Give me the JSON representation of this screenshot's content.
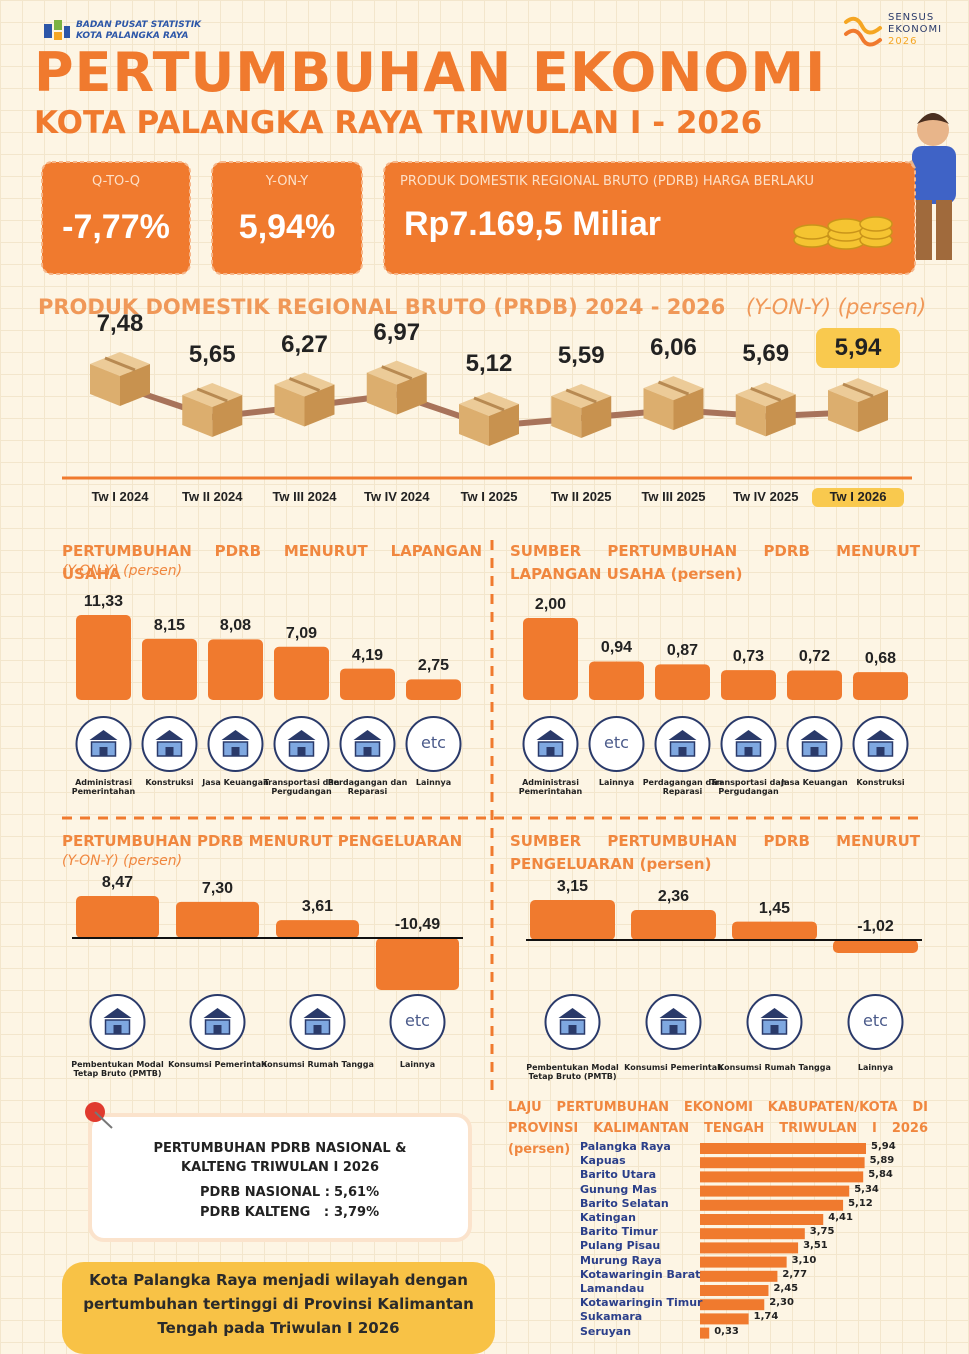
{
  "header": {
    "org": "BADAN PUSAT STATISTIK",
    "region": "KOTA PALANGKA RAYA",
    "title": "PERTUMBUHAN EKONOMI",
    "subtitle": "KOTA PALANGKA RAYA TRIWULAN I - 2026",
    "census": [
      "SENSUS",
      "EKONOMI",
      "2026"
    ]
  },
  "kpis": [
    {
      "label": "Q-TO-Q",
      "value": "-7,77%"
    },
    {
      "label": "Y-ON-Y",
      "value": "5,94%"
    },
    {
      "label": "PRODUK DOMESTIK REGIONAL BRUTO (PDRB) HARGA BERLAKU",
      "value": "Rp7.169,5 Miliar"
    }
  ],
  "chart_data": [
    {
      "type": "line",
      "title": "PRODUK DOMESTIK REGIONAL BRUTO (PRDB) 2024 - 2026",
      "subtitle": "(Y-ON-Y) (persen)",
      "categories": [
        "Tw I 2024",
        "Tw II 2024",
        "Tw III 2024",
        "Tw IV 2024",
        "Tw I 2025",
        "Tw II 2025",
        "Tw III 2025",
        "Tw IV 2025",
        "Tw I 2026"
      ],
      "values": [
        7.48,
        5.65,
        6.27,
        6.97,
        5.12,
        5.59,
        6.06,
        5.69,
        5.94
      ],
      "value_labels": [
        "7,48",
        "5,65",
        "6,27",
        "6,97",
        "5,12",
        "5,59",
        "6,06",
        "5,69",
        "5,94"
      ],
      "color": "#a8735a",
      "highlight_color": "#f9c94e"
    },
    {
      "type": "bar",
      "title": "PERTUMBUHAN PDRB MENURUT LAPANGAN USAHA",
      "subtitle": "(Y-ON-Y) (persen)",
      "categories": [
        "Administrasi Pemerintahan",
        "Konstruksi",
        "Jasa Keuangan",
        "Transportasi dan Pergudangan",
        "Perdagangan dan Reparasi",
        "Lainnya"
      ],
      "values": [
        11.33,
        8.15,
        8.08,
        7.09,
        4.19,
        2.75
      ],
      "value_labels": [
        "11,33",
        "8,15",
        "8,08",
        "7,09",
        "4,19",
        "2,75"
      ],
      "icon_texts": [
        null,
        null,
        null,
        null,
        null,
        "etc"
      ],
      "color": "#f07a2e"
    },
    {
      "type": "bar",
      "title": "SUMBER PERTUMBUHAN PDRB MENURUT LAPANGAN USAHA (persen)",
      "categories": [
        "Administrasi Pemerintahan",
        "Lainnya",
        "Perdagangan dan Reparasi",
        "Transportasi dan Pergudangan",
        "Jasa Keuangan",
        "Konstruksi"
      ],
      "values": [
        2.0,
        0.94,
        0.87,
        0.73,
        0.72,
        0.68
      ],
      "value_labels": [
        "2,00",
        "0,94",
        "0,87",
        "0,73",
        "0,72",
        "0,68"
      ],
      "icon_texts": [
        null,
        "etc",
        null,
        null,
        null,
        null
      ],
      "color": "#f07a2e"
    },
    {
      "type": "bar",
      "title": "PERTUMBUHAN PDRB MENURUT PENGELUARAN",
      "subtitle": "(Y-ON-Y) (persen)",
      "categories": [
        "Pembentukan Modal Tetap Bruto (PMTB)",
        "Konsumsi Pemerintah",
        "Konsumsi Rumah Tangga",
        "Lainnya"
      ],
      "values": [
        8.47,
        7.3,
        3.61,
        -10.49
      ],
      "value_labels": [
        "8,47",
        "7,30",
        "3,61",
        "-10,49"
      ],
      "icon_texts": [
        null,
        null,
        null,
        "etc"
      ],
      "color": "#f07a2e",
      "zero_line": true
    },
    {
      "type": "bar",
      "title": "SUMBER PERTUMBUHAN PDRB MENURUT PENGELUARAN (persen)",
      "categories": [
        "Pembentukan Modal Tetap Bruto (PMTB)",
        "Konsumsi Pemerintah",
        "Konsumsi Rumah Tangga",
        "Lainnya"
      ],
      "values": [
        3.15,
        2.36,
        1.45,
        -1.02
      ],
      "value_labels": [
        "3,15",
        "2,36",
        "1,45",
        "-1,02"
      ],
      "icon_texts": [
        null,
        null,
        null,
        "etc"
      ],
      "color": "#f07a2e",
      "zero_line": true
    },
    {
      "type": "hbar",
      "title": "LAJU PERTUMBUHAN EKONOMI KABUPATEN/KOTA DI PROVINSI KALIMANTAN TENGAH TRIWULAN I 2026 (persen)",
      "categories": [
        "Palangka Raya",
        "Kapuas",
        "Barito Utara",
        "Gunung Mas",
        "Barito Selatan",
        "Katingan",
        "Barito Timur",
        "Pulang Pisau",
        "Murung Raya",
        "Kotawaringin Barat",
        "Lamandau",
        "Kotawaringin Timur",
        "Sukamara",
        "Seruyan"
      ],
      "values": [
        5.94,
        5.89,
        5.84,
        5.34,
        5.12,
        4.41,
        3.75,
        3.51,
        3.1,
        2.77,
        2.45,
        2.3,
        1.74,
        0.33
      ],
      "value_labels": [
        "5,94",
        "5,89",
        "5,84",
        "5,34",
        "5,12",
        "4,41",
        "3,75",
        "3,51",
        "3,10",
        "2,77",
        "2,45",
        "2,30",
        "1,74",
        "0,33"
      ],
      "color": "#f07a2e"
    }
  ],
  "note": {
    "title": "PERTUMBUHAN PDRB NASIONAL & KALTENG TRIWULAN I 2026",
    "rows": [
      [
        "PDRB NASIONAL :",
        "5,61%"
      ],
      [
        "PDRB KALTENG   :",
        "3,79%"
      ]
    ]
  },
  "conclusion": "Kota Palangka Raya menjadi wilayah dengan pertumbuhan tertinggi di Provinsi Kalimantan Tengah pada Triwulan I 2026"
}
